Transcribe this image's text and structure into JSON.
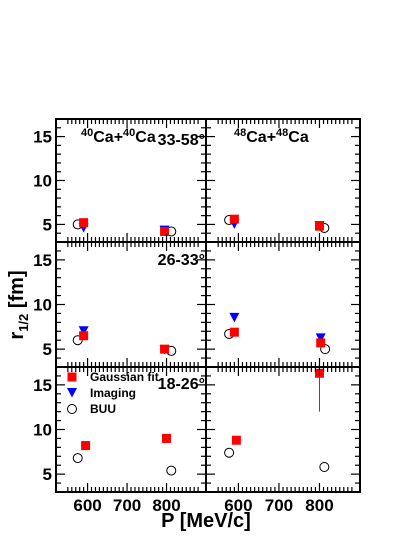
{
  "chart_data": {
    "type": "scatter",
    "x_axis": {
      "label": "P [MeV/c]",
      "ticks": [
        "600",
        "700",
        "800"
      ],
      "xlim": [
        520,
        900
      ]
    },
    "y_axis": {
      "label": "r1/2 [fm]",
      "label_main": "r",
      "label_sub": "1/2",
      "label_unit": " [fm]",
      "ticks": [
        "5",
        "10",
        "15"
      ],
      "ylim": [
        3,
        17
      ]
    },
    "columns": [
      {
        "id": "ca40",
        "label_parts": {
          "sup1": "40",
          "el1": "Ca+",
          "sup2": "40",
          "el2": "Ca"
        }
      },
      {
        "id": "ca48",
        "label_parts": {
          "sup1": "48",
          "el1": "Ca+",
          "sup2": "48",
          "el2": "Ca"
        }
      }
    ],
    "rows": [
      {
        "angle_range": "33-58°"
      },
      {
        "angle_range": "26-33°"
      },
      {
        "angle_range": "18-26°"
      }
    ],
    "legend": {
      "placement": "top-left of bottom-left panel",
      "entries": [
        {
          "series": "gaussian",
          "label": "Gaussian fit"
        },
        {
          "series": "imaging",
          "label": "Imaging"
        },
        {
          "series": "buu",
          "label": "BUU"
        }
      ]
    },
    "series_styles": {
      "gaussian": {
        "marker": "square",
        "color": "#ff0000"
      },
      "imaging": {
        "marker": "triangle-down",
        "color": "#0000ff"
      },
      "buu": {
        "marker": "open-circle",
        "color": "#000000"
      }
    },
    "panels": [
      {
        "row": 0,
        "col": 0,
        "points": [
          {
            "series": "buu",
            "x": 575,
            "y": 5.0
          },
          {
            "series": "gaussian",
            "x": 590,
            "y": 5.2
          },
          {
            "series": "imaging",
            "x": 590,
            "y": 4.6
          },
          {
            "series": "gaussian",
            "x": 795,
            "y": 4.2
          },
          {
            "series": "imaging",
            "x": 795,
            "y": 4.3
          },
          {
            "series": "buu",
            "x": 812,
            "y": 4.2
          }
        ]
      },
      {
        "row": 0,
        "col": 1,
        "points": [
          {
            "series": "buu",
            "x": 577,
            "y": 5.5
          },
          {
            "series": "gaussian",
            "x": 590,
            "y": 5.6
          },
          {
            "series": "imaging",
            "x": 590,
            "y": 5.0
          },
          {
            "series": "gaussian",
            "x": 800,
            "y": 4.8
          },
          {
            "series": "imaging",
            "x": 800,
            "y": 4.8
          },
          {
            "series": "buu",
            "x": 812,
            "y": 4.6
          }
        ]
      },
      {
        "row": 1,
        "col": 0,
        "points": [
          {
            "series": "buu",
            "x": 575,
            "y": 6.0
          },
          {
            "series": "gaussian",
            "x": 590,
            "y": 6.5
          },
          {
            "series": "imaging",
            "x": 590,
            "y": 7.0
          },
          {
            "series": "gaussian",
            "x": 795,
            "y": 5.0
          },
          {
            "series": "imaging",
            "x": 795,
            "y": 4.9
          },
          {
            "series": "buu",
            "x": 812,
            "y": 4.8
          }
        ]
      },
      {
        "row": 1,
        "col": 1,
        "points": [
          {
            "series": "buu",
            "x": 577,
            "y": 6.7
          },
          {
            "series": "gaussian",
            "x": 590,
            "y": 6.9
          },
          {
            "series": "imaging",
            "x": 590,
            "y": 8.5,
            "err": 0.3
          },
          {
            "series": "gaussian",
            "x": 803,
            "y": 5.7
          },
          {
            "series": "imaging",
            "x": 803,
            "y": 6.2,
            "err": 0.5
          },
          {
            "series": "buu",
            "x": 814,
            "y": 5.0
          }
        ]
      },
      {
        "row": 2,
        "col": 0,
        "points": [
          {
            "series": "buu",
            "x": 575,
            "y": 6.8
          },
          {
            "series": "gaussian",
            "x": 595,
            "y": 8.2
          },
          {
            "series": "gaussian",
            "x": 800,
            "y": 9.0,
            "err": 0.5
          },
          {
            "series": "buu",
            "x": 812,
            "y": 5.4
          }
        ]
      },
      {
        "row": 2,
        "col": 1,
        "points": [
          {
            "series": "buu",
            "x": 577,
            "y": 7.4
          },
          {
            "series": "gaussian",
            "x": 595,
            "y": 8.8
          },
          {
            "series": "gaussian",
            "x": 800,
            "y": 16.3,
            "err_low": 4.3,
            "err_high": 0.2
          },
          {
            "series": "buu",
            "x": 812,
            "y": 5.8
          }
        ]
      }
    ]
  }
}
